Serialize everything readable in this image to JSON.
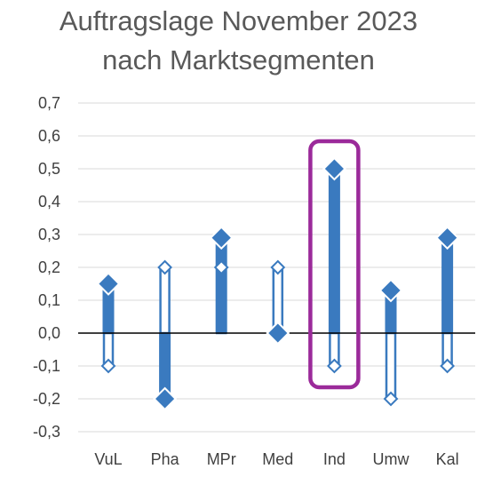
{
  "chart_data": {
    "type": "scatter",
    "title_line1": "Auftragslage November 2023",
    "title_line2": "nach Marktsegmenten",
    "categories": [
      "VuL",
      "Pha",
      "MPr",
      "Med",
      "Ind",
      "Umw",
      "Kal"
    ],
    "series": [
      {
        "marker": "filled-diamond",
        "values": [
          0.15,
          -0.2,
          0.29,
          0.0,
          0.5,
          0.13,
          0.29
        ]
      },
      {
        "marker": "hollow-diamond",
        "values": [
          -0.1,
          0.2,
          0.2,
          0.2,
          -0.1,
          -0.2,
          -0.1
        ]
      }
    ],
    "ylim": [
      -0.3,
      0.7
    ],
    "yticks": [
      0.7,
      0.6,
      0.5,
      0.4,
      0.3,
      0.2,
      0.1,
      0.0,
      -0.1,
      -0.2,
      -0.3
    ],
    "ytick_labels": [
      "0,7",
      "0,6",
      "0,5",
      "0,4",
      "0,3",
      "0,2",
      "0,1",
      "0,0",
      "-0,1",
      "-0,2",
      "-0,3"
    ],
    "grid": true,
    "highlight_category": "Ind",
    "colors": {
      "series": "#3a7abf",
      "highlight": "#9b2a9a",
      "grid": "#d9d9d9",
      "axis": "#000000",
      "text": "#404040"
    }
  }
}
